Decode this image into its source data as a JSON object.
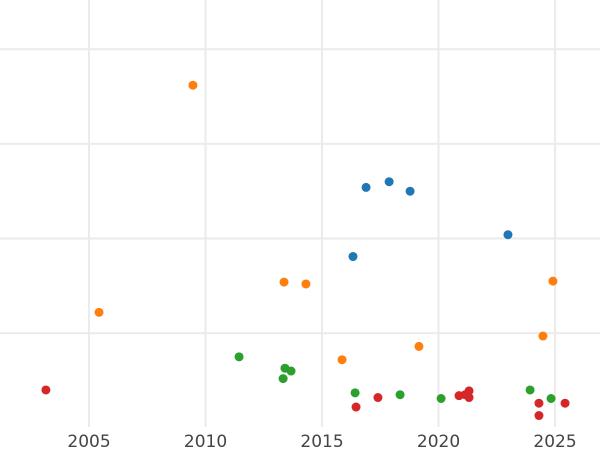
{
  "chart_data": {
    "type": "scatter",
    "title": "",
    "xlabel": "",
    "ylabel": "",
    "xlim": [
      2001.18,
      2026.93
    ],
    "ylim": [
      0.03,
      4.52
    ],
    "x_ticks": [
      2005,
      2010,
      2015,
      2020,
      2025
    ],
    "x_tick_labels": [
      "2005",
      "2010",
      "2015",
      "2020",
      "2025"
    ],
    "y_gridlines": [
      1,
      2,
      3,
      4
    ],
    "y_tick_labels_shown": false,
    "grid": true,
    "series": [
      {
        "color": "#1f77b4",
        "points": [
          [
            2016.33,
            1.81
          ],
          [
            2016.89,
            2.54
          ],
          [
            2017.88,
            2.6
          ],
          [
            2018.78,
            2.5
          ],
          [
            2022.98,
            2.04
          ]
        ]
      },
      {
        "color": "#ff7f0e",
        "points": [
          [
            2005.43,
            1.22
          ],
          [
            2009.46,
            3.62
          ],
          [
            2013.37,
            1.54
          ],
          [
            2014.31,
            1.52
          ],
          [
            2015.86,
            0.72
          ],
          [
            2019.16,
            0.86
          ],
          [
            2024.48,
            0.97
          ],
          [
            2024.91,
            1.55
          ]
        ]
      },
      {
        "color": "#2ca02c",
        "points": [
          [
            2011.44,
            0.75
          ],
          [
            2013.41,
            0.63
          ],
          [
            2013.67,
            0.6
          ],
          [
            2013.33,
            0.52
          ],
          [
            2016.42,
            0.37
          ],
          [
            2018.35,
            0.35
          ],
          [
            2020.11,
            0.31
          ],
          [
            2023.93,
            0.4
          ],
          [
            2024.83,
            0.31
          ]
        ]
      },
      {
        "color": "#d62728",
        "points": [
          [
            2003.15,
            0.4
          ],
          [
            2016.46,
            0.22
          ],
          [
            2017.4,
            0.32
          ],
          [
            2020.88,
            0.34
          ],
          [
            2021.14,
            0.35
          ],
          [
            2021.31,
            0.39
          ],
          [
            2021.31,
            0.32
          ],
          [
            2024.31,
            0.26
          ],
          [
            2024.31,
            0.13
          ],
          [
            2025.43,
            0.26
          ]
        ]
      }
    ]
  }
}
